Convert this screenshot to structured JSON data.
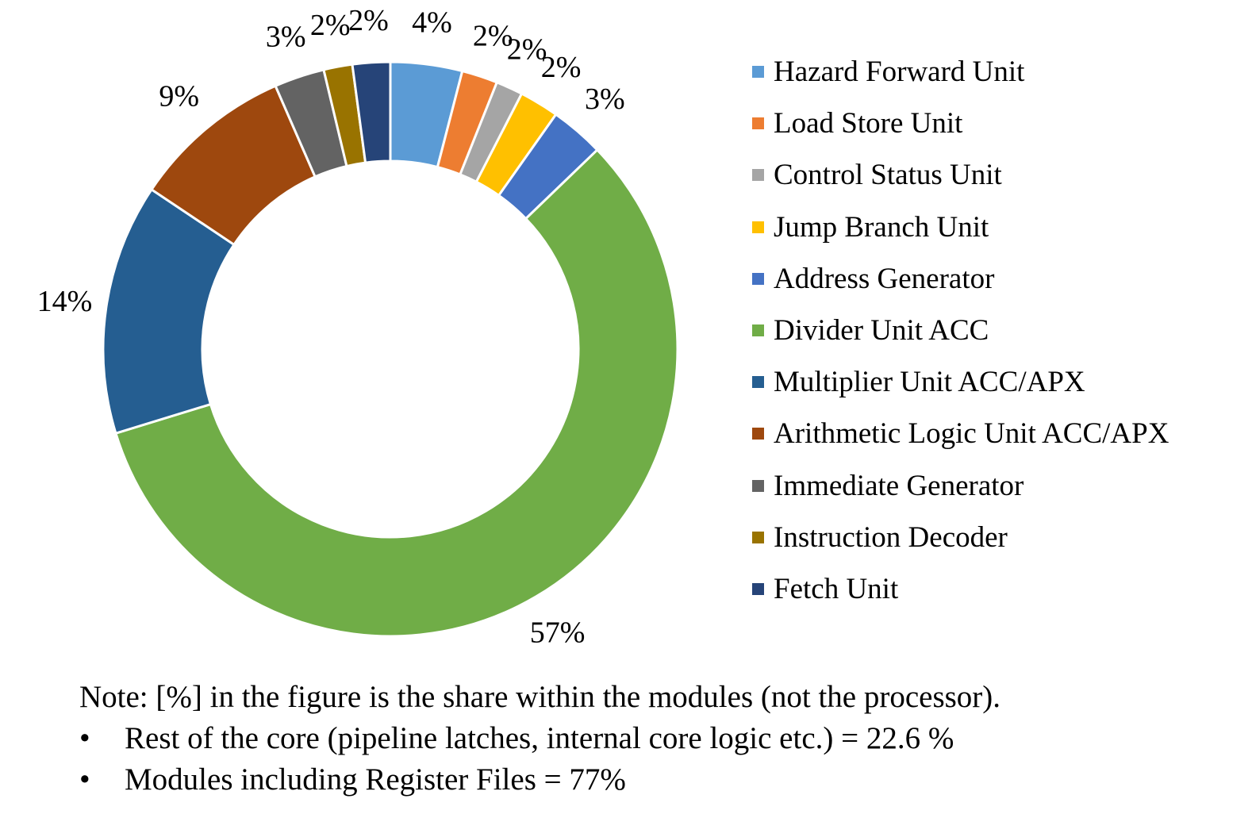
{
  "chart_data": {
    "type": "pie",
    "variant": "donut",
    "title": "",
    "start_angle_deg": 0,
    "direction": "clockwise",
    "legend_position": "right",
    "slices": [
      {
        "name": "Hazard Forward Unit",
        "value": 4,
        "label": "4%",
        "color": "#5B9BD5"
      },
      {
        "name": "Load Store Unit",
        "value": 2,
        "label": "2%",
        "color": "#ED7D31"
      },
      {
        "name": "Control Status Unit",
        "value": 1.5,
        "label": "2%",
        "color": "#A5A5A5"
      },
      {
        "name": "Jump Branch Unit",
        "value": 2.2,
        "label": "2%",
        "color": "#FFC000"
      },
      {
        "name": "Address Generator",
        "value": 3,
        "label": "3%",
        "color": "#4472C4"
      },
      {
        "name": "Divider Unit ACC",
        "value": 57,
        "label": "57%",
        "color": "#70AD47"
      },
      {
        "name": "Multiplier Unit ACC/APX",
        "value": 14,
        "label": "14%",
        "color": "#255E91"
      },
      {
        "name": "Arithmetic Logic Unit ACC/APX",
        "value": 9,
        "label": "9%",
        "color": "#9E480E"
      },
      {
        "name": "Immediate Generator",
        "value": 2.8,
        "label": "3%",
        "color": "#636363"
      },
      {
        "name": "Instruction Decoder",
        "value": 1.6,
        "label": "2%",
        "color": "#997300"
      },
      {
        "name": "Fetch Unit",
        "value": 2.1,
        "label": "2%",
        "color": "#264478"
      }
    ]
  },
  "note": {
    "text": "Note: [%] in the figure is the share within the modules (not the processor).",
    "bullet_symbol": "•",
    "bullets": [
      "Rest of the core (pipeline latches, internal core logic etc.) = 22.6 %",
      "Modules including Register Files = 77%"
    ]
  }
}
